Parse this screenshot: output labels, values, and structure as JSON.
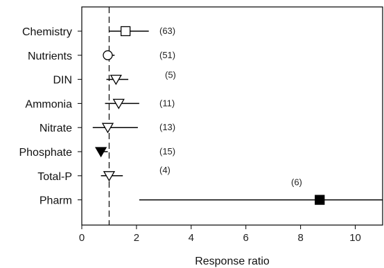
{
  "chart_data": {
    "type": "scatter",
    "xlabel": "Response ratio",
    "xlim": [
      0,
      11
    ],
    "xticks": [
      0,
      2,
      4,
      6,
      8,
      10
    ],
    "reference_line": 1,
    "rows": [
      {
        "label": "Chemistry",
        "n": "(63)",
        "mean": 1.6,
        "lower": 1.0,
        "upper": 2.45,
        "marker": "square-open"
      },
      {
        "label": "Nutrients",
        "n": "(51)",
        "mean": 0.95,
        "lower": 0.78,
        "upper": 1.2,
        "marker": "circle-open"
      },
      {
        "label": "DIN",
        "n": "(5)",
        "mean": 1.25,
        "lower": 0.9,
        "upper": 1.7,
        "marker": "triangle-open"
      },
      {
        "label": "Ammonia",
        "n": "(11)",
        "mean": 1.35,
        "lower": 0.85,
        "upper": 2.1,
        "marker": "triangle-open"
      },
      {
        "label": "Nitrate",
        "n": "(13)",
        "mean": 0.95,
        "lower": 0.4,
        "upper": 2.05,
        "marker": "triangle-open"
      },
      {
        "label": "Phosphate",
        "n": "(15)",
        "mean": 0.7,
        "lower": 0.6,
        "upper": 0.95,
        "marker": "triangle-filled"
      },
      {
        "label": "Total-P",
        "n": "(4)",
        "mean": 1.0,
        "lower": 0.7,
        "upper": 1.5,
        "marker": "triangle-open"
      },
      {
        "label": "Pharm",
        "n": "(6)",
        "mean": 8.7,
        "lower": 2.1,
        "upper": 11,
        "marker": "square-filled"
      }
    ]
  }
}
